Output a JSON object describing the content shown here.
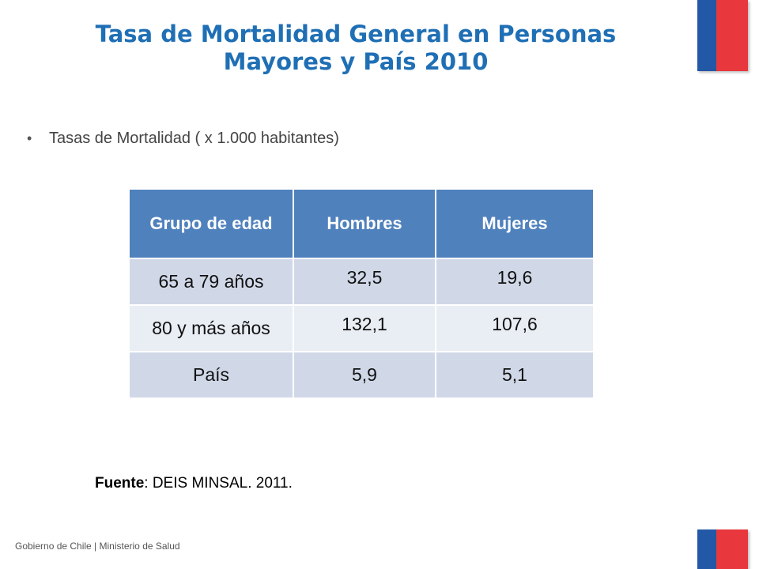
{
  "slide": {
    "title_line1": "Tasa de Mortalidad General en Personas",
    "title_line2": "Mayores y País 2010",
    "bullet": "Tasas de Mortalidad ( x 1.000 habitantes)",
    "bullet_symbol": "•",
    "source_label": "Fuente",
    "source_text": ": DEIS MINSAL. 2011.",
    "footer": "Gobierno de Chile | Ministerio de Salud"
  },
  "colors": {
    "title": "#1f6fb5",
    "header_bg": "#4f81bd",
    "row_dark": "#d0d8e8",
    "row_light": "#e9edf4",
    "flag_blue": "#2358a6",
    "flag_red": "#e8383d"
  },
  "table": {
    "headers": [
      "Grupo de edad",
      "Hombres",
      "Mujeres"
    ],
    "rows": [
      [
        "65 a 79 años",
        "32,5",
        "19,6"
      ],
      [
        "80 y más años",
        "132,1",
        "107,6"
      ],
      [
        "País",
        "5,9",
        "5,1"
      ]
    ]
  }
}
